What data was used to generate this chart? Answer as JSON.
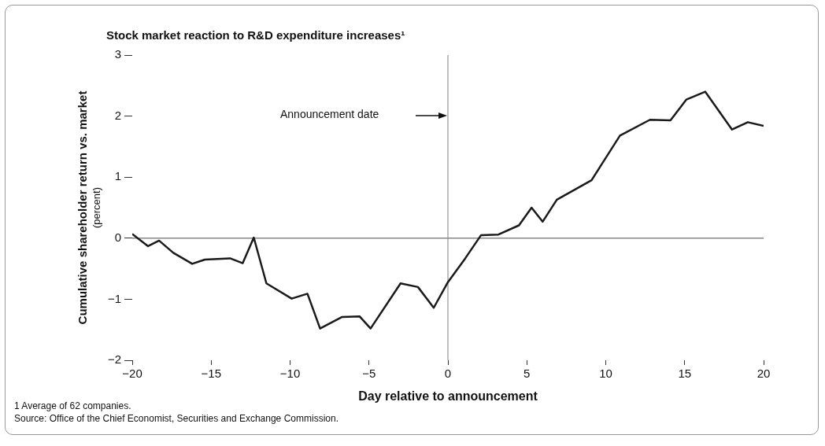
{
  "chart_data": {
    "type": "line",
    "title": "Stock market reaction to R&D expenditure increases¹",
    "xlabel": "Day relative to announcement",
    "ylabel": "Cumulative shareholder return vs. market\n(percent)",
    "series": [
      {
        "color": "#1a1a1a",
        "x": [
          -20,
          -19,
          -18.3,
          -17.4,
          -16.2,
          -15.4,
          -13.8,
          -13,
          -12.3,
          -11.5,
          -9.9,
          -8.9,
          -8.1,
          -6.7,
          -5.6,
          -4.9,
          -3,
          -1.9,
          -0.9,
          0,
          1.1,
          2.1,
          3.2,
          4.5,
          5.3,
          6,
          6.9,
          9.1,
          10.9,
          12.8,
          14.1,
          15.1,
          16.3,
          18,
          19,
          20
        ],
        "values": [
          0.07,
          -0.13,
          -0.04,
          -0.24,
          -0.42,
          -0.35,
          -0.33,
          -0.41,
          0.01,
          -0.74,
          -0.99,
          -0.91,
          -1.48,
          -1.29,
          -1.28,
          -1.48,
          -0.74,
          -0.8,
          -1.14,
          -0.72,
          -0.33,
          0.05,
          0.06,
          0.21,
          0.5,
          0.27,
          0.63,
          0.95,
          1.68,
          1.94,
          1.93,
          2.27,
          2.4,
          1.78,
          1.9,
          1.84
        ]
      }
    ],
    "xlim": [
      -20,
      20
    ],
    "xticks": [
      -20,
      -15,
      -10,
      -5,
      0,
      5,
      10,
      15,
      20
    ],
    "ylim": [
      -2,
      3
    ],
    "yticks": [
      -2,
      -1,
      0,
      1,
      2,
      3
    ],
    "ref_lines": [
      {
        "axis": "x",
        "value": 0,
        "color": "#aaaaaa"
      },
      {
        "axis": "y",
        "value": 0,
        "color": "#888888"
      }
    ],
    "annotations": [
      "Announcement date",
      "1  Average of 62 companies.",
      "Source: Office of the Chief Economist, Securities and Exchange Commission."
    ],
    "grid": false,
    "legend": false,
    "marker": "none",
    "line_style": "solid"
  }
}
